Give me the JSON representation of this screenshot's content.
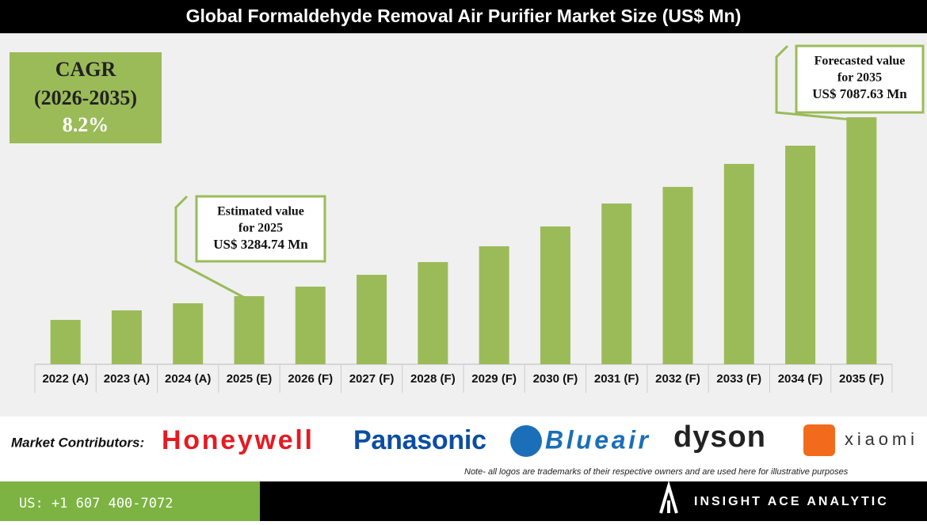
{
  "chart_data": {
    "type": "bar",
    "title": "Global Formaldehyde Removal Air Purifier Market Size (US$ Mn)",
    "categories": [
      "2022 (A)",
      "2023 (A)",
      "2024 (A)",
      "2025 (E)",
      "2026 (F)",
      "2027 (F)",
      "2028 (F)",
      "2029 (F)",
      "2030 (F)",
      "2031 (F)",
      "2032 (F)",
      "2033 (F)",
      "2034 (F)",
      "2035 (F)"
    ],
    "values": [
      2780,
      2982,
      3133,
      3284.74,
      3487,
      3739,
      4009,
      4345,
      4766,
      5254,
      5607,
      6096,
      6483,
      7087.63
    ],
    "color": "#9bbb59",
    "ylim": [
      1837,
      7560
    ],
    "cagr": [
      "CAGR",
      "(2026-2035)",
      "8.2%"
    ],
    "annotations": [
      {
        "category": 3,
        "lines": [
          "Estimated value",
          "for 2025",
          "US$ 3284.74 Mn"
        ]
      },
      {
        "category": 13,
        "lines": [
          "Forecasted value",
          "for 2035",
          "US$ 7087.63 Mn"
        ]
      }
    ]
  },
  "contributors": {
    "label": "Market Contributors:",
    "logos": [
      "Honeywell",
      "Panasonic",
      "Blueair",
      "dyson",
      "xiaomi"
    ],
    "note": "Note- all logos are trademarks of their respective owners and are used here for illustrative purposes"
  },
  "footer": {
    "phone": "US: +1 607 400-7072",
    "brand": "INSIGHT ACE ANALYTIC"
  }
}
